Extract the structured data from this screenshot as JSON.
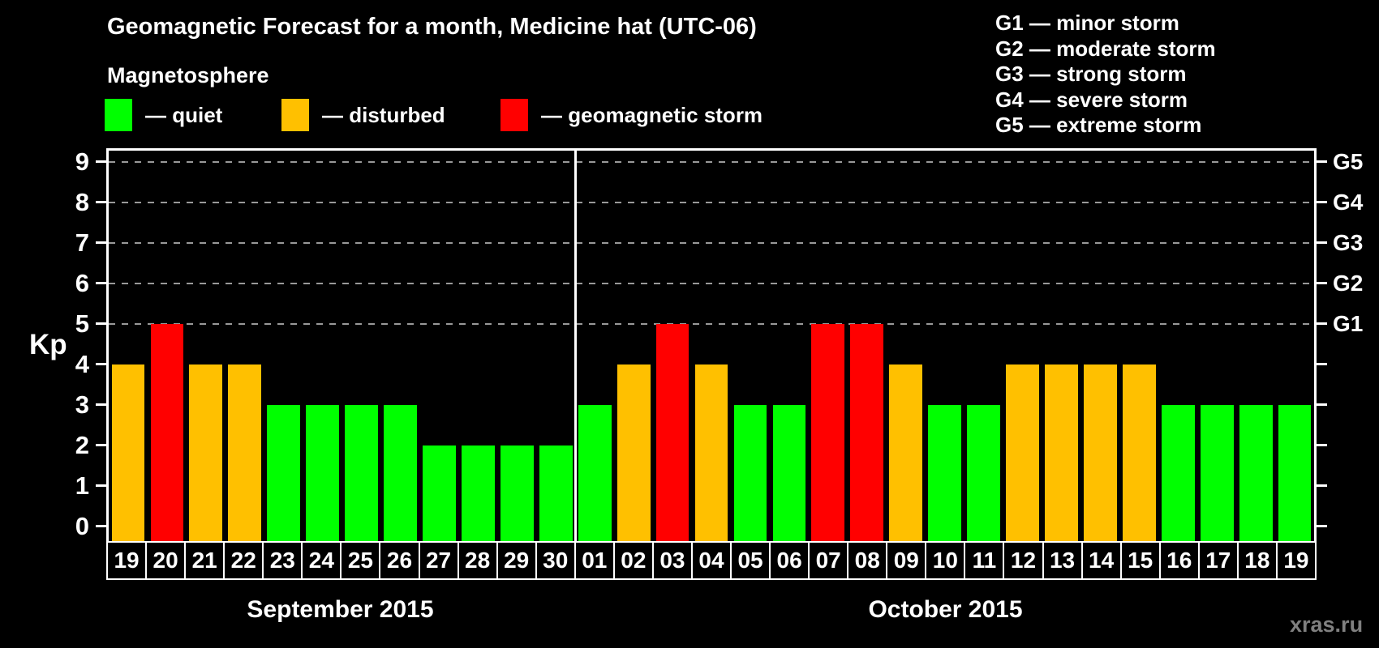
{
  "title": "Geomagnetic Forecast for a month, Medicine hat (UTC-06)",
  "subtitle": "Magnetosphere",
  "watermark": "xras.ru",
  "colors": {
    "quiet": "#00ff00",
    "disturbed": "#ffc000",
    "storm": "#ff0000",
    "grid": "#999999",
    "frame": "#ffffff",
    "background": "#000000",
    "watermark": "#808080"
  },
  "legend": [
    {
      "key": "quiet",
      "label": "— quiet"
    },
    {
      "key": "disturbed",
      "label": "— disturbed"
    },
    {
      "key": "storm",
      "label": "— geomagnetic storm"
    }
  ],
  "g_scale_legend": [
    "G1 — minor storm",
    "G2 — moderate storm",
    "G3 — strong storm",
    "G4 — severe storm",
    "G5 — extreme storm"
  ],
  "chart_data": {
    "type": "bar",
    "title": "Geomagnetic Forecast for a month, Medicine hat (UTC-06)",
    "ylabel": "Kp",
    "ylim": [
      0,
      9
    ],
    "yticks": [
      0,
      1,
      2,
      3,
      4,
      5,
      6,
      7,
      8,
      9
    ],
    "gridlines_at": [
      5,
      6,
      7,
      8,
      9
    ],
    "grid_style": "dashed",
    "legend_position": "top-left",
    "right_axis": [
      {
        "value": 5,
        "label": "G1"
      },
      {
        "value": 6,
        "label": "G2"
      },
      {
        "value": 7,
        "label": "G3"
      },
      {
        "value": 8,
        "label": "G4"
      },
      {
        "value": 9,
        "label": "G5"
      }
    ],
    "months": [
      {
        "label": "September 2015",
        "days": [
          {
            "date": "19",
            "kp": 4,
            "status": "disturbed"
          },
          {
            "date": "20",
            "kp": 5,
            "status": "storm"
          },
          {
            "date": "21",
            "kp": 4,
            "status": "disturbed"
          },
          {
            "date": "22",
            "kp": 4,
            "status": "disturbed"
          },
          {
            "date": "23",
            "kp": 3,
            "status": "quiet"
          },
          {
            "date": "24",
            "kp": 3,
            "status": "quiet"
          },
          {
            "date": "25",
            "kp": 3,
            "status": "quiet"
          },
          {
            "date": "26",
            "kp": 3,
            "status": "quiet"
          },
          {
            "date": "27",
            "kp": 2,
            "status": "quiet"
          },
          {
            "date": "28",
            "kp": 2,
            "status": "quiet"
          },
          {
            "date": "29",
            "kp": 2,
            "status": "quiet"
          },
          {
            "date": "30",
            "kp": 2,
            "status": "quiet"
          }
        ]
      },
      {
        "label": "October 2015",
        "days": [
          {
            "date": "01",
            "kp": 3,
            "status": "quiet"
          },
          {
            "date": "02",
            "kp": 4,
            "status": "disturbed"
          },
          {
            "date": "03",
            "kp": 5,
            "status": "storm"
          },
          {
            "date": "04",
            "kp": 4,
            "status": "disturbed"
          },
          {
            "date": "05",
            "kp": 3,
            "status": "quiet"
          },
          {
            "date": "06",
            "kp": 3,
            "status": "quiet"
          },
          {
            "date": "07",
            "kp": 5,
            "status": "storm"
          },
          {
            "date": "08",
            "kp": 5,
            "status": "storm"
          },
          {
            "date": "09",
            "kp": 4,
            "status": "disturbed"
          },
          {
            "date": "10",
            "kp": 3,
            "status": "quiet"
          },
          {
            "date": "11",
            "kp": 3,
            "status": "quiet"
          },
          {
            "date": "12",
            "kp": 4,
            "status": "disturbed"
          },
          {
            "date": "13",
            "kp": 4,
            "status": "disturbed"
          },
          {
            "date": "14",
            "kp": 4,
            "status": "disturbed"
          },
          {
            "date": "15",
            "kp": 4,
            "status": "disturbed"
          },
          {
            "date": "16",
            "kp": 3,
            "status": "quiet"
          },
          {
            "date": "17",
            "kp": 3,
            "status": "quiet"
          },
          {
            "date": "18",
            "kp": 3,
            "status": "quiet"
          },
          {
            "date": "19",
            "kp": 3,
            "status": "quiet"
          }
        ]
      }
    ]
  }
}
